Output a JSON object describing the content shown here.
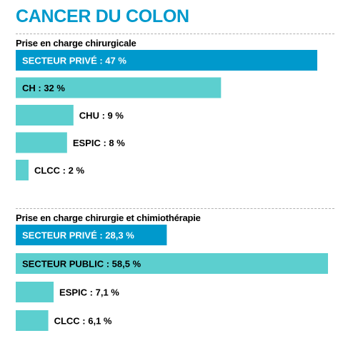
{
  "page": {
    "title": "CANCER DU COLON"
  },
  "colors": {
    "title": "#0099cc",
    "highlight": "#0099cc",
    "bar": "#5ccfcf"
  },
  "chart_data": [
    {
      "type": "bar",
      "orientation": "horizontal",
      "title": "Prise en charge chirurgicale",
      "unit": "%",
      "categories": [
        "SECTEUR PRIVÉ",
        "CH",
        "CHU",
        "ESPIC",
        "CLCC"
      ],
      "values": [
        47,
        32,
        9,
        8,
        2
      ],
      "value_labels": [
        "47 %",
        "32 %",
        "9 %",
        "8 %",
        "2 %"
      ],
      "highlighted": [
        "SECTEUR PRIVÉ"
      ],
      "xlim": [
        0,
        47
      ]
    },
    {
      "type": "bar",
      "orientation": "horizontal",
      "title": "Prise en charge chirurgie et chimiothérapie",
      "unit": "%",
      "categories": [
        "SECTEUR PRIVÉ",
        "SECTEUR PUBLIC",
        "ESPIC",
        "CLCC"
      ],
      "values": [
        28.3,
        58.5,
        7.1,
        6.1
      ],
      "value_labels": [
        "28,3 %",
        "58,5 %",
        "7,1 %",
        "6,1 %"
      ],
      "highlighted": [
        "SECTEUR PRIVÉ"
      ],
      "xlim": [
        0,
        58.5
      ]
    }
  ]
}
